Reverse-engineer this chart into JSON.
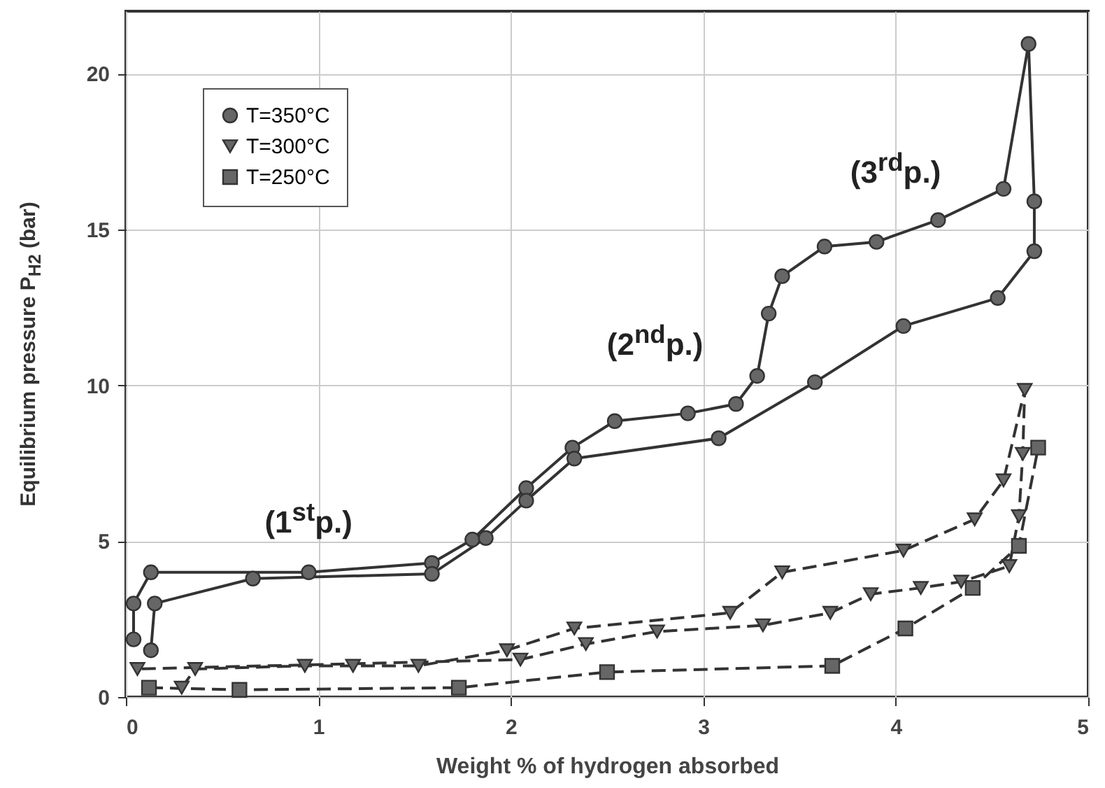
{
  "chart_data": {
    "type": "line",
    "xlabel": "Weight % of hydrogen absorbed",
    "ylabel": "Equilibrium pressure  P$_{H2}$ (bar)",
    "xlim": [
      0,
      5
    ],
    "ylim": [
      0,
      22
    ],
    "xticks": [
      0,
      1,
      2,
      3,
      4,
      5
    ],
    "yticks": [
      0,
      5,
      10,
      15,
      20
    ],
    "grid": true,
    "legend": "top left",
    "annotations": [
      "(1$^{st}$p.)",
      "(2$^{nd}$p.)",
      "(3$^{rd}$p.)"
    ],
    "series": [
      {
        "name": "T=350°C",
        "color": "#333333",
        "marker": "circle",
        "line_style": "solid",
        "x": [
          0.04,
          0.04,
          0.13,
          0.95,
          1.59,
          1.8,
          2.08,
          2.32,
          2.54,
          2.92,
          3.17,
          3.28,
          3.34,
          3.41,
          3.63,
          3.9,
          4.22,
          4.56,
          4.69,
          4.72,
          4.72,
          4.53,
          4.04,
          3.58,
          3.08,
          2.33,
          2.08,
          1.87,
          1.59,
          0.66,
          0.15,
          0.13
        ],
        "values": [
          1.85,
          3.0,
          4.0,
          4.0,
          4.3,
          5.05,
          6.7,
          8.0,
          8.85,
          9.1,
          9.4,
          10.3,
          12.3,
          13.5,
          14.45,
          14.6,
          15.3,
          16.3,
          20.95,
          15.9,
          14.3,
          12.8,
          11.9,
          10.1,
          8.3,
          7.65,
          6.3,
          5.1,
          3.95,
          3.8,
          3.0,
          1.5
        ]
      },
      {
        "name": "T=300°C",
        "color": "#333333",
        "marker": "triangle",
        "line_style": "dashed",
        "x": [
          0.29,
          0.36,
          0.93,
          1.18,
          1.52,
          1.98,
          2.33,
          3.14,
          3.41,
          4.04,
          4.41,
          4.56,
          4.67,
          4.66,
          4.64,
          4.59,
          4.34,
          4.13,
          3.87,
          3.66,
          3.31,
          2.76,
          2.39,
          2.05,
          0.06
        ],
        "values": [
          0.3,
          0.9,
          1.0,
          1.0,
          1.0,
          1.5,
          2.2,
          2.7,
          4.0,
          4.7,
          5.7,
          6.95,
          9.85,
          7.8,
          5.8,
          4.2,
          3.7,
          3.5,
          3.3,
          2.7,
          2.3,
          2.1,
          1.7,
          1.2,
          0.9
        ]
      },
      {
        "name": "T=250°C",
        "color": "#333333",
        "marker": "square",
        "line_style": "dashed",
        "x": [
          0.12,
          0.59,
          1.73,
          2.5,
          3.67,
          4.05,
          4.4,
          4.64,
          4.74
        ],
        "values": [
          0.3,
          0.23,
          0.3,
          0.8,
          1.0,
          2.2,
          3.5,
          4.85,
          8.0
        ]
      }
    ]
  }
}
